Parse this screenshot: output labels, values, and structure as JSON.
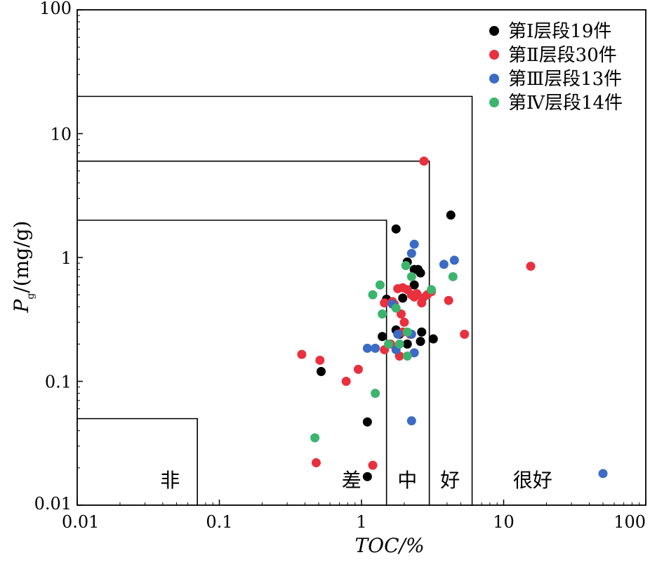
{
  "chart_data": {
    "type": "scatter",
    "title": "",
    "xlabel": "TOC/%",
    "ylabel_main": "P",
    "ylabel_sub": "g",
    "ylabel_rest": "/(mg/g)",
    "xscale": "log",
    "yscale": "log",
    "xlim": [
      0.01,
      100
    ],
    "ylim": [
      0.01,
      100
    ],
    "x_ticks": [
      {
        "value": 0.01,
        "label": "0.01"
      },
      {
        "value": 0.1,
        "label": "0.1"
      },
      {
        "value": 1,
        "label": "1"
      },
      {
        "value": 10,
        "label": "10"
      },
      {
        "value": 100,
        "label": "100"
      }
    ],
    "y_ticks": [
      {
        "value": 0.01,
        "label": "0.01"
      },
      {
        "value": 0.1,
        "label": "0.1"
      },
      {
        "value": 1,
        "label": "1"
      },
      {
        "value": 10,
        "label": "10"
      },
      {
        "value": 100,
        "label": "100"
      }
    ],
    "legend_position": "top-right",
    "regions": [
      {
        "label": "非",
        "toc_max": 0.07,
        "pg_max": 0.05,
        "label_x": 0.045,
        "label_y": 0.016
      },
      {
        "label": "差",
        "toc_max": 1.5,
        "pg_max": 2,
        "label_x": 0.85,
        "label_y": 0.016
      },
      {
        "label": "中",
        "toc_max": 3,
        "pg_max": 6,
        "label_x": 2.1,
        "label_y": 0.016
      },
      {
        "label": "好",
        "toc_max": 6,
        "pg_max": 20,
        "label_x": 4.2,
        "label_y": 0.016
      },
      {
        "label": "很好",
        "toc_max": null,
        "pg_max": null,
        "label_x": 16,
        "label_y": 0.016
      }
    ],
    "series": [
      {
        "name": "第Ⅰ层段19件",
        "color": "#000000",
        "points": [
          [
            1.75,
            1.7
          ],
          [
            4.25,
            2.2
          ],
          [
            2.1,
            0.92
          ],
          [
            2.35,
            0.8
          ],
          [
            2.5,
            0.8
          ],
          [
            2.6,
            0.75
          ],
          [
            1.5,
            0.46
          ],
          [
            1.95,
            0.47
          ],
          [
            1.75,
            0.26
          ],
          [
            2.65,
            0.25
          ],
          [
            1.4,
            0.23
          ],
          [
            1.85,
            0.24
          ],
          [
            2.1,
            0.2
          ],
          [
            2.6,
            0.21
          ],
          [
            3.2,
            0.22
          ],
          [
            0.52,
            0.12
          ],
          [
            1.1,
            0.047
          ],
          [
            1.1,
            0.017
          ],
          [
            2.35,
            0.6
          ]
        ]
      },
      {
        "name": "第Ⅱ层段30件",
        "color": "#e8303e",
        "points": [
          [
            2.75,
            6.0
          ],
          [
            15.5,
            0.85
          ],
          [
            1.8,
            0.56
          ],
          [
            1.95,
            0.57
          ],
          [
            2.45,
            0.51
          ],
          [
            2.35,
            0.48
          ],
          [
            2.7,
            0.47
          ],
          [
            2.65,
            0.43
          ],
          [
            3.1,
            0.53
          ],
          [
            4.1,
            0.45
          ],
          [
            1.45,
            0.43
          ],
          [
            1.65,
            0.44
          ],
          [
            2.0,
            0.3
          ],
          [
            1.95,
            0.25
          ],
          [
            5.3,
            0.24
          ],
          [
            1.45,
            0.18
          ],
          [
            1.85,
            0.16
          ],
          [
            0.38,
            0.165
          ],
          [
            0.51,
            0.148
          ],
          [
            0.95,
            0.125
          ],
          [
            0.78,
            0.1
          ],
          [
            0.48,
            0.022
          ],
          [
            1.2,
            0.021
          ],
          [
            2.25,
            0.5
          ],
          [
            2.1,
            0.55
          ],
          [
            1.7,
            0.42
          ],
          [
            2.2,
            0.24
          ],
          [
            1.6,
            0.2
          ],
          [
            2.9,
            0.5
          ],
          [
            1.9,
            0.35
          ]
        ]
      },
      {
        "name": "第Ⅲ层段13件",
        "color": "#3b6bc4",
        "points": [
          [
            2.35,
            1.28
          ],
          [
            2.25,
            1.08
          ],
          [
            4.5,
            0.95
          ],
          [
            3.8,
            0.88
          ],
          [
            2.25,
            0.24
          ],
          [
            1.1,
            0.185
          ],
          [
            1.25,
            0.185
          ],
          [
            2.35,
            0.17
          ],
          [
            2.25,
            0.048
          ],
          [
            50,
            0.018
          ],
          [
            1.75,
            0.18
          ],
          [
            1.65,
            0.42
          ],
          [
            1.8,
            0.24
          ]
        ]
      },
      {
        "name": "第Ⅳ层段14件",
        "color": "#3cb46e",
        "points": [
          [
            2.05,
            0.86
          ],
          [
            2.25,
            0.7
          ],
          [
            4.4,
            0.7
          ],
          [
            1.35,
            0.6
          ],
          [
            3.1,
            0.55
          ],
          [
            1.2,
            0.5
          ],
          [
            1.75,
            0.39
          ],
          [
            1.4,
            0.35
          ],
          [
            2.1,
            0.25
          ],
          [
            1.55,
            0.2
          ],
          [
            1.85,
            0.2
          ],
          [
            2.1,
            0.16
          ],
          [
            1.25,
            0.08
          ],
          [
            0.47,
            0.035
          ]
        ]
      }
    ]
  }
}
